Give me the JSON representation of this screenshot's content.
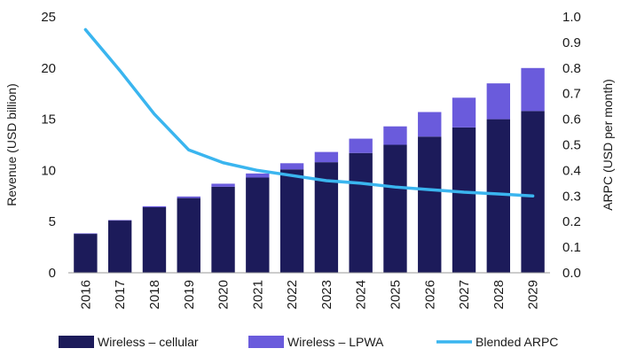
{
  "chart_data": {
    "type": "bar",
    "stacked": true,
    "categories": [
      "2016",
      "2017",
      "2018",
      "2019",
      "2020",
      "2021",
      "2022",
      "2023",
      "2024",
      "2025",
      "2026",
      "2027",
      "2028",
      "2029"
    ],
    "series": [
      {
        "name": "Wireless – cellular",
        "type": "bar",
        "axis": "left",
        "color": "#1c1b5a",
        "values": [
          3.8,
          5.1,
          6.4,
          7.3,
          8.4,
          9.3,
          10.1,
          10.8,
          11.7,
          12.5,
          13.3,
          14.2,
          15.0,
          15.8
        ]
      },
      {
        "name": "Wireless – LPWA",
        "type": "bar",
        "axis": "left",
        "color": "#6a5bdc",
        "values": [
          0.05,
          0.05,
          0.1,
          0.15,
          0.3,
          0.4,
          0.6,
          1.0,
          1.4,
          1.8,
          2.4,
          2.9,
          3.5,
          4.2
        ]
      },
      {
        "name": "Blended ARPC",
        "type": "line",
        "axis": "right",
        "color": "#3ab5ef",
        "values": [
          0.95,
          0.79,
          0.62,
          0.48,
          0.43,
          0.4,
          0.38,
          0.36,
          0.35,
          0.335,
          0.325,
          0.315,
          0.308,
          0.3
        ]
      }
    ],
    "ylabel": "Revenue (USD billion)",
    "y2label": "ARPC (USD per month)",
    "ylim": [
      0,
      25
    ],
    "y2lim": [
      0,
      1.0
    ],
    "yticks": [
      "0",
      "5",
      "10",
      "15",
      "20",
      "25"
    ],
    "y2ticks": [
      "0.0",
      "0.1",
      "0.2",
      "0.3",
      "0.4",
      "0.5",
      "0.6",
      "0.7",
      "0.8",
      "0.9",
      "1.0"
    ],
    "grid": false,
    "legend_position": "bottom"
  }
}
